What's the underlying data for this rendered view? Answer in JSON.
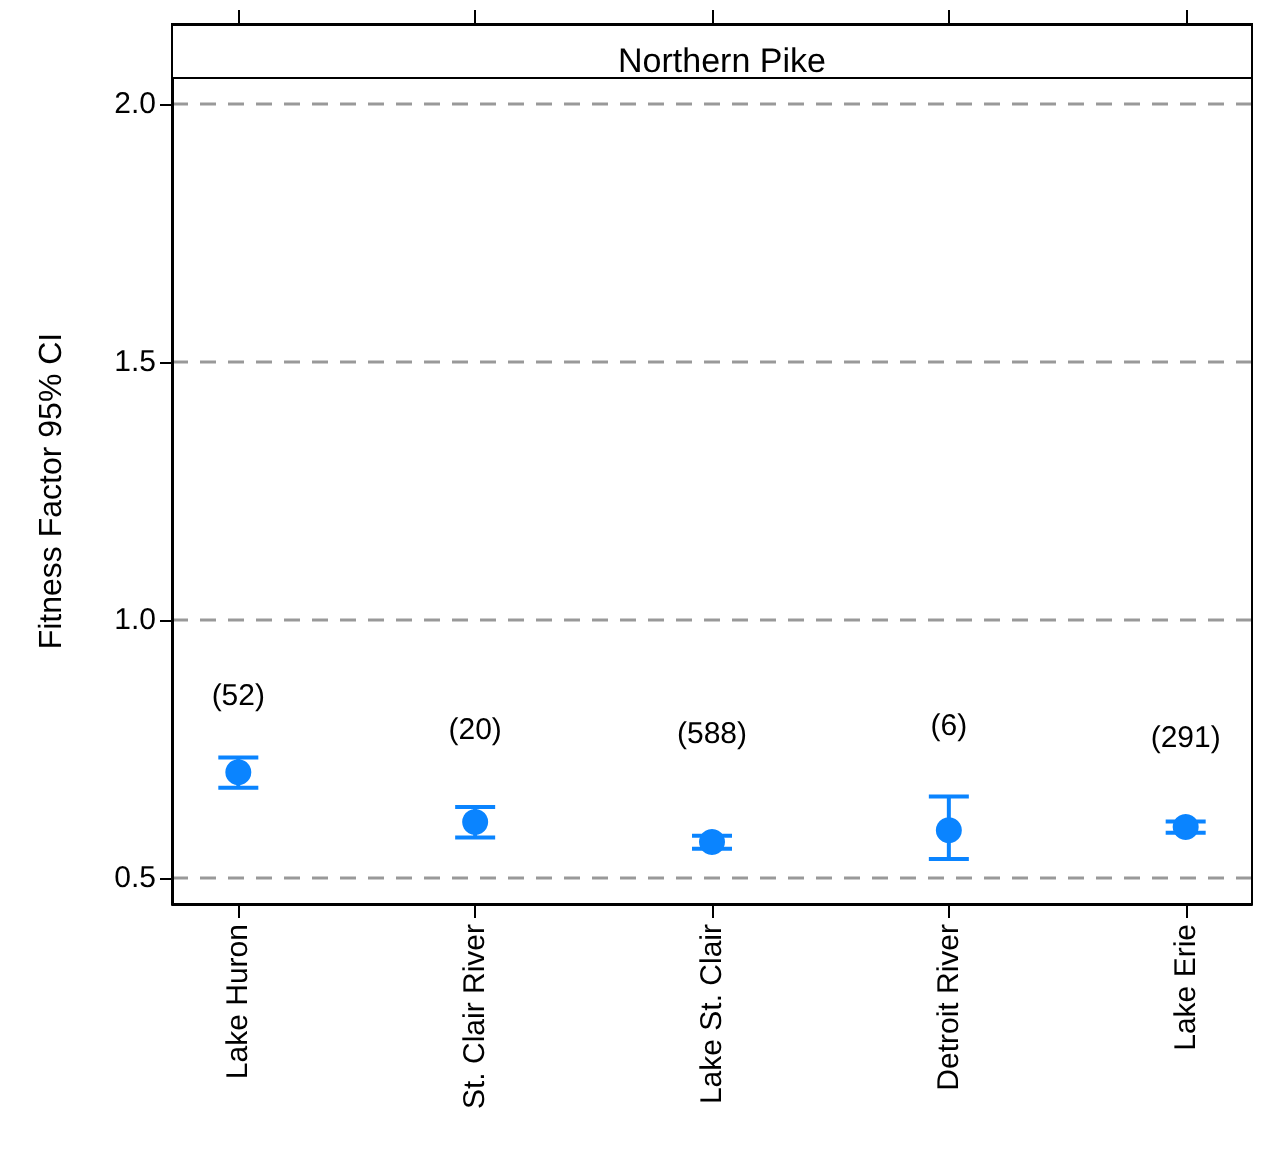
{
  "chart_data": {
    "type": "scatter",
    "title": "Northern Pike",
    "ylabel": "Fitness Factor 95% CI",
    "categories": [
      "Lake Huron",
      "St. Clair River",
      "Lake St. Clair",
      "Detroit River",
      "Lake Erie"
    ],
    "series": [
      {
        "color": "#0a84ff",
        "values": [
          0.705,
          0.609,
          0.57,
          0.593,
          0.599
        ],
        "errors": [
          [
            0.675,
            0.734
          ],
          [
            0.579,
            0.638
          ],
          [
            0.557,
            0.582
          ],
          [
            0.537,
            0.658
          ],
          [
            0.588,
            0.61
          ]
        ]
      }
    ],
    "annotations": [
      "(52)",
      "(20)",
      "(588)",
      "(6)",
      "(291)"
    ],
    "ylim": [
      0.45,
      2.05
    ],
    "yticks": [
      {
        "value": 0.5,
        "label": "0.5"
      },
      {
        "value": 1.0,
        "label": "1.0"
      },
      {
        "value": 1.5,
        "label": "1.5"
      },
      {
        "value": 2.0,
        "label": "2.0"
      }
    ],
    "grid": "y",
    "marker": "circle"
  }
}
